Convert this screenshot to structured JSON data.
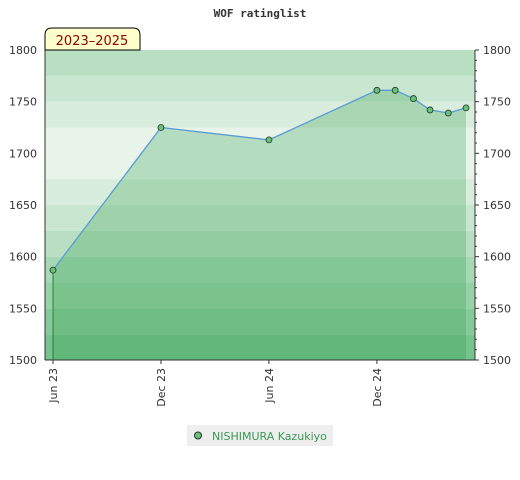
{
  "chart_data": {
    "type": "area",
    "title": "WOF ratinglist",
    "period_badge": "2023–2025",
    "series": [
      {
        "name": "NISHIMURA Kazukiyo",
        "points": [
          {
            "x": "2023-06-01",
            "y": 1587
          },
          {
            "x": "2023-12-01",
            "y": 1725
          },
          {
            "x": "2024-06-01",
            "y": 1713
          },
          {
            "x": "2024-12-01",
            "y": 1761
          },
          {
            "x": "2025-01-01",
            "y": 1761
          },
          {
            "x": "2025-02-01",
            "y": 1753
          },
          {
            "x": "2025-03-01",
            "y": 1742
          },
          {
            "x": "2025-04-01",
            "y": 1739
          },
          {
            "x": "2025-05-01",
            "y": 1744
          }
        ]
      }
    ],
    "x_ticks": [
      {
        "x": "2023-06-01",
        "label": "Jun 23"
      },
      {
        "x": "2023-12-01",
        "label": "Dec 23"
      },
      {
        "x": "2024-06-01",
        "label": "Jun 24"
      },
      {
        "x": "2024-12-01",
        "label": "Dec 24"
      }
    ],
    "x_range": [
      "2023-06-01",
      "2025-05-01"
    ],
    "y_ticks": [
      1500,
      1550,
      1600,
      1650,
      1700,
      1750,
      1800
    ],
    "ylim": [
      1500,
      1800
    ],
    "grid": true,
    "legend_position": "bottom",
    "colors": {
      "line": "#5b9bd5",
      "marker_fill": "#6abf7b",
      "marker_stroke": "#1e3a22",
      "area_fill": "#2e9e4a",
      "band_light": "#e8f4ea",
      "band_dark": "#7cc490",
      "badge_bg": "#ffffcc",
      "legend_bg": "#eeeeee"
    }
  }
}
